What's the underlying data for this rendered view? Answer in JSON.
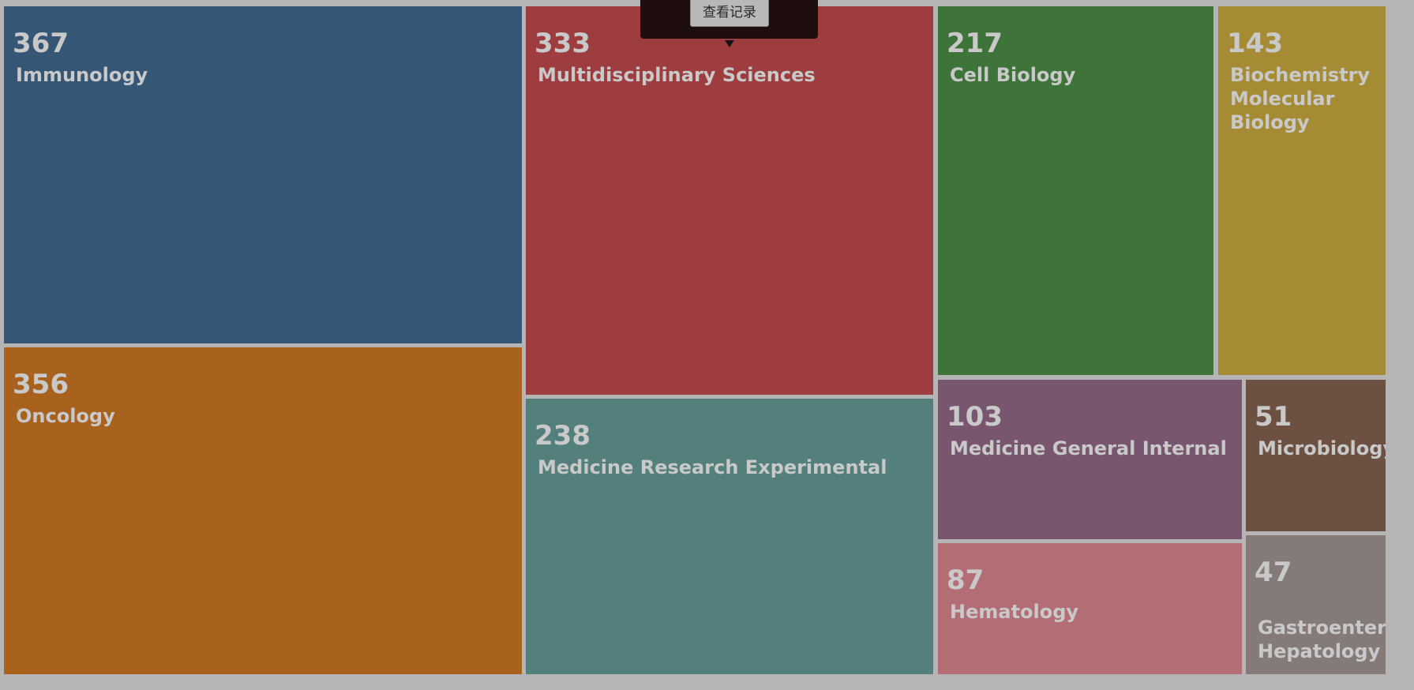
{
  "chart_data": {
    "type": "treemap",
    "items": [
      {
        "name": "Immunology",
        "value": 367,
        "color": "#365675"
      },
      {
        "name": "Oncology",
        "value": 356,
        "color": "#a8621e"
      },
      {
        "name": "Multidisciplinary Sciences",
        "value": 333,
        "color": "#9e3d3f"
      },
      {
        "name": "Medicine Research Experimental",
        "value": 238,
        "color": "#53807c"
      },
      {
        "name": "Cell Biology",
        "value": 217,
        "color": "#3e7339"
      },
      {
        "name": "Biochemistry Molecular Biology",
        "value": 143,
        "color": "#a68b35"
      },
      {
        "name": "Medicine General Internal",
        "value": 103,
        "color": "#78566f"
      },
      {
        "name": "Hematology",
        "value": 87,
        "color": "#b36d74"
      },
      {
        "name": "Microbiology",
        "value": 51,
        "color": "#6c5142"
      },
      {
        "name": "Gastroenterology Hepatology",
        "value": 47,
        "color": "#847a78"
      }
    ]
  },
  "tooltip": {
    "button_label": "查看记录"
  }
}
